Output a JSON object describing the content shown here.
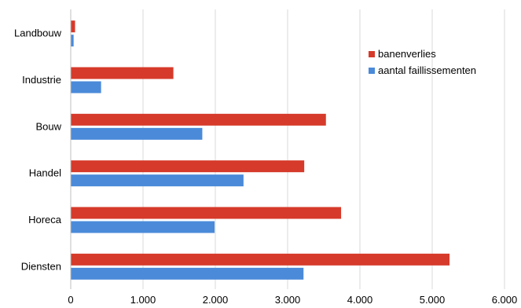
{
  "chart_data": {
    "type": "bar",
    "orientation": "horizontal",
    "categories": [
      "Landbouw",
      "Industrie",
      "Bouw",
      "Handel",
      "Horeca",
      "Diensten"
    ],
    "series": [
      {
        "name": "banenverlies",
        "color": "#d63a2a",
        "values": [
          60,
          1420,
          3530,
          3230,
          3740,
          5240
        ]
      },
      {
        "name": "aantal faillissementen",
        "color": "#4a8ad9",
        "values": [
          40,
          420,
          1820,
          2390,
          1990,
          3220
        ]
      }
    ],
    "x_ticks": [
      "0",
      "1.000",
      "2.000",
      "3.000",
      "4.000",
      "5.000",
      "6.000"
    ],
    "xlim": [
      0,
      6000
    ],
    "grid": true,
    "legend_position": "top-right",
    "title": "",
    "xlabel": "",
    "ylabel": ""
  }
}
